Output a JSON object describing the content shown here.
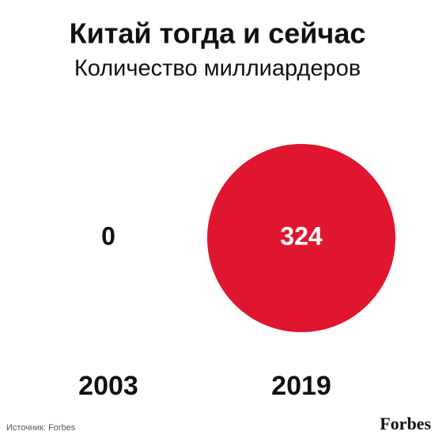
{
  "chart_data": {
    "type": "bubble",
    "title": "Китай тогда и сейчас",
    "subtitle": "Количество миллиардеров",
    "categories": [
      "2003",
      "2019"
    ],
    "values": [
      0,
      324
    ],
    "color": "#e0152f",
    "source": "Источник: Forbes",
    "logo": "Forbes"
  }
}
